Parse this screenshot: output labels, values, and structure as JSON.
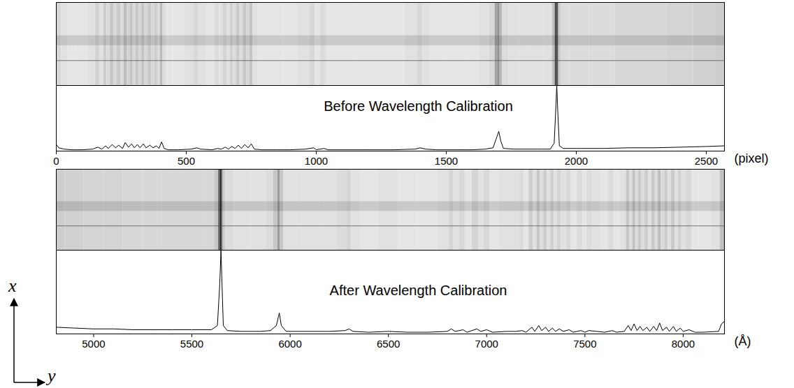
{
  "chart_data": [
    {
      "type": "line",
      "title": "Before Wavelength Calibration",
      "xlabel": "(pixel)",
      "color": "#000000",
      "tick_labels": "x",
      "xlim": [
        0,
        2570
      ],
      "xticks": [
        0,
        500,
        1000,
        1500,
        2000,
        2500
      ],
      "ylim": [
        0,
        100
      ],
      "x": [
        0,
        10,
        30,
        60,
        100,
        140,
        160,
        175,
        190,
        200,
        215,
        228,
        240,
        255,
        265,
        278,
        290,
        300,
        312,
        322,
        335,
        345,
        360,
        372,
        385,
        395,
        405,
        415,
        430,
        470,
        520,
        540,
        555,
        600,
        620,
        635,
        650,
        662,
        675,
        688,
        700,
        712,
        725,
        738,
        750,
        762,
        790,
        850,
        900,
        960,
        990,
        1000,
        1030,
        1045,
        1100,
        1200,
        1300,
        1380,
        1400,
        1420,
        1460,
        1550,
        1600,
        1650,
        1680,
        1695,
        1702,
        1710,
        1720,
        1760,
        1800,
        1850,
        1900,
        1915,
        1922,
        1925,
        1929,
        1935,
        1950,
        2000,
        2100,
        2200,
        2300,
        2400,
        2500,
        2570
      ],
      "values": [
        10,
        5,
        3,
        2,
        2,
        3,
        6,
        3,
        8,
        4,
        10,
        5,
        9,
        4,
        13,
        6,
        11,
        5,
        10,
        5,
        11,
        5,
        9,
        5,
        8,
        4,
        14,
        4,
        2,
        2,
        3,
        5,
        3,
        2,
        4,
        3,
        6,
        3,
        7,
        4,
        9,
        4,
        10,
        5,
        11,
        3,
        2,
        2,
        2,
        3,
        5,
        2,
        4,
        2,
        2,
        2,
        2,
        3,
        5,
        3,
        2,
        2,
        2,
        3,
        5,
        22,
        30,
        15,
        4,
        3,
        3,
        3,
        3,
        12,
        70,
        100,
        60,
        8,
        4,
        4,
        4,
        5,
        5,
        6,
        7,
        8
      ]
    },
    {
      "type": "line",
      "title": "After Wavelength Calibration",
      "xlabel": "(Å)",
      "color": "#000000",
      "tick_labels": "x",
      "xlim": [
        4810,
        8210
      ],
      "xticks": [
        5000,
        5500,
        6000,
        6500,
        7000,
        7500,
        8000
      ],
      "ylim": [
        0,
        100
      ],
      "x": [
        4810,
        4900,
        5000,
        5100,
        5200,
        5300,
        5400,
        5500,
        5600,
        5630,
        5642,
        5648,
        5652,
        5660,
        5680,
        5750,
        5850,
        5900,
        5930,
        5945,
        5955,
        5980,
        6100,
        6200,
        6280,
        6300,
        6320,
        6400,
        6500,
        6600,
        6700,
        6800,
        6820,
        6840,
        6880,
        6900,
        6950,
        6970,
        7000,
        7030,
        7100,
        7150,
        7180,
        7200,
        7230,
        7245,
        7265,
        7280,
        7300,
        7315,
        7335,
        7350,
        7370,
        7390,
        7420,
        7440,
        7480,
        7500,
        7520,
        7560,
        7600,
        7640,
        7660,
        7700,
        7720,
        7735,
        7750,
        7765,
        7780,
        7795,
        7815,
        7830,
        7850,
        7865,
        7880,
        7895,
        7915,
        7930,
        7950,
        7965,
        7985,
        8000,
        8030,
        8060,
        8100,
        8180,
        8195,
        8210
      ],
      "values": [
        8,
        7,
        6,
        6,
        5,
        5,
        5,
        5,
        5,
        10,
        60,
        100,
        70,
        10,
        4,
        3,
        3,
        4,
        10,
        25,
        10,
        3,
        3,
        3,
        4,
        6,
        3,
        2,
        3,
        2,
        2,
        3,
        6,
        3,
        5,
        2,
        6,
        3,
        5,
        2,
        3,
        3,
        4,
        2,
        8,
        3,
        10,
        4,
        8,
        3,
        7,
        3,
        6,
        3,
        5,
        2,
        4,
        2,
        4,
        3,
        2,
        4,
        2,
        3,
        10,
        4,
        12,
        4,
        9,
        4,
        8,
        3,
        9,
        4,
        13,
        4,
        8,
        3,
        9,
        3,
        7,
        3,
        5,
        2,
        2,
        3,
        12,
        15
      ]
    }
  ],
  "axes_sketch": {
    "up": "x",
    "right": "y"
  }
}
